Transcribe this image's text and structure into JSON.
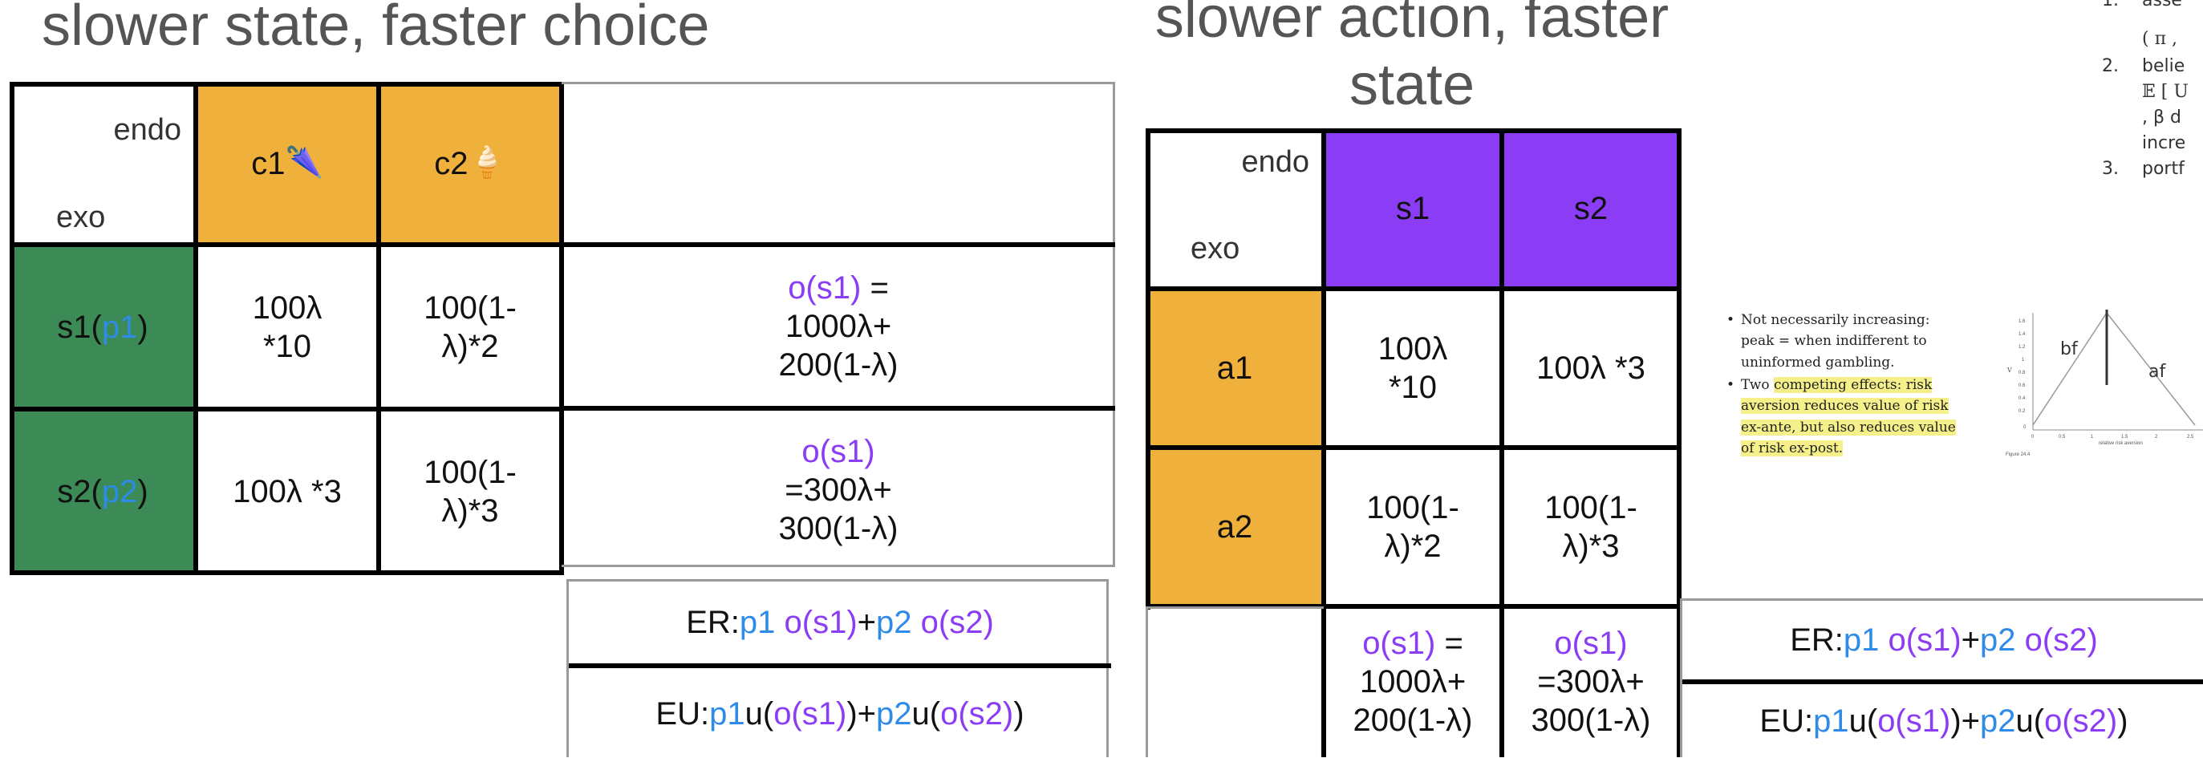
{
  "left": {
    "title": "slower state, faster choice",
    "header": {
      "endo": "endo",
      "exo": "exo",
      "c1": "c1",
      "c1_icon": "🌂",
      "c2": "c2",
      "c2_icon": "🍦"
    },
    "rows": [
      {
        "label": "s1(",
        "prob": "p1",
        "close": ")",
        "c1_line1": "100λ",
        "c1_line2": "*10",
        "c2_line1": "100(1-",
        "c2_line2": "λ)*2",
        "o_label": "o(s1)",
        "o_eq": " =",
        "o_line2": "1000λ+",
        "o_line3": "200(1-λ)"
      },
      {
        "label": "s2(",
        "prob": "p2",
        "close": ")",
        "c1_line1": "100λ *3",
        "c1_line2": "",
        "c2_line1": "100(1-",
        "c2_line2": "λ)*3",
        "o_label": "o(s1)",
        "o_eq": "",
        "o_line2": "=300λ+",
        "o_line3": "300(1-λ)"
      }
    ],
    "er": {
      "prefix": "ER:",
      "p1": "p1",
      "o1": "o(s1)",
      "plus": " +",
      "p2": "p2",
      "o2": "o(s2)"
    },
    "eu": {
      "prefix": "EU:",
      "p1": "p1",
      "u1a": " u(",
      "o1": "o(s1)",
      "u1b": ")+",
      "p2": "p2",
      "u2a": " u(",
      "o2": "o(s2)",
      "u2b": ")"
    }
  },
  "right": {
    "title_line1": "slower action, faster",
    "title_line2": "state",
    "header": {
      "endo": "endo",
      "exo": "exo",
      "s1": "s1",
      "s2": "s2"
    },
    "rows": [
      {
        "label": "a1",
        "s1_line1": "100λ",
        "s1_line2": "*10",
        "s2": "100λ *3"
      },
      {
        "label": "a2",
        "s1_line1": "100(1-",
        "s1_line2": "λ)*2",
        "s2_line1": "100(1-",
        "s2_line2": "λ)*3"
      }
    ],
    "bottom": {
      "o1_label": "o(s1)",
      "o1_eq": " =",
      "o1_line2": "1000λ+",
      "o1_line3": "200(1-λ)",
      "o2_label": "o(s1)",
      "o2_line2": "=300λ+",
      "o2_line3": "300(1-λ)"
    },
    "er": {
      "prefix": "ER:",
      "p1": "p1",
      "o1": "o(s1)",
      "plus": " +",
      "p2": "p2",
      "o2": "o(s2)"
    },
    "eu": {
      "prefix": "EU:",
      "p1": "p1",
      "u1a": " u(",
      "o1": "o(s1)",
      "u1b": ")+",
      "p2": "p2",
      "u2a": " u(",
      "o2": "o(s2)",
      "u2b": ")"
    }
  },
  "notes": {
    "bullet1": "Not necessarily increasing: peak = when indifferent to uninformed gambling.",
    "bullet2_pre": "Two ",
    "bullet2_hl": "competing effects: risk aversion reduces value of risk ex-ante, but also reduces value of risk ex-post."
  },
  "mini_chart": {
    "label_bf": "bf",
    "label_af": "af",
    "ylabel": "V",
    "xlabel": "relative risk aversion",
    "caption": "Figure 24.4",
    "yticks": [
      "1.6",
      "1.4",
      "1.2",
      "1",
      "0.8",
      "0.6",
      "0.4",
      "0.2",
      "0"
    ],
    "xticks": [
      "0",
      "0.5",
      "1",
      "1.5",
      "2",
      "2.5"
    ]
  },
  "right_column": {
    "items": [
      {
        "num": "1.",
        "text": "asse"
      },
      {
        "num": "",
        "text": "( π ,"
      },
      {
        "num": "2.",
        "text": "belie"
      },
      {
        "num": "",
        "text": "𝔼 [ U"
      },
      {
        "num": "",
        "text": ", β d"
      },
      {
        "num": "",
        "text": "incre"
      },
      {
        "num": "3.",
        "text": "portf"
      }
    ]
  },
  "colors": {
    "orange": "#F0B03C",
    "green": "#3C8A55",
    "purple": "#8B3CF5",
    "blue": "#2E8BE8"
  }
}
